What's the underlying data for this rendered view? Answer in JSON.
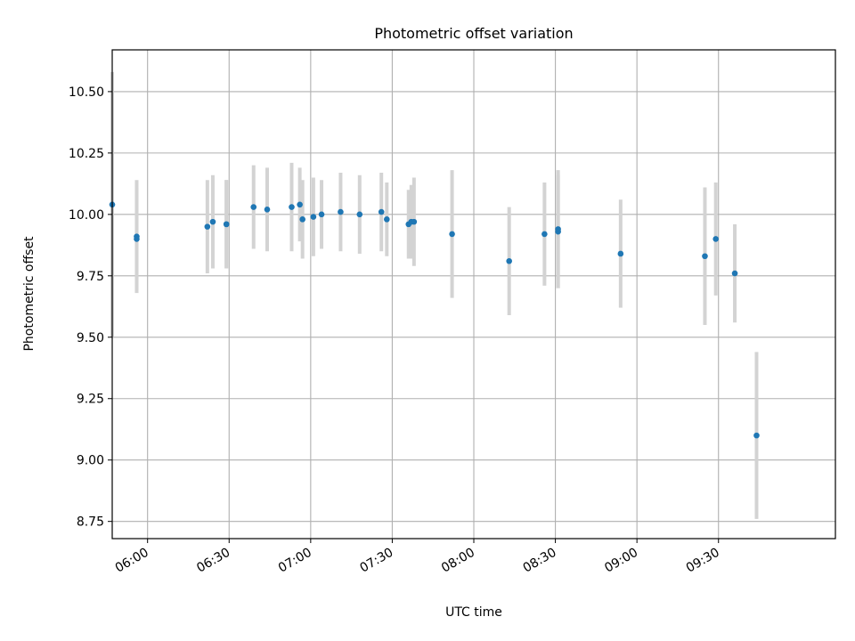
{
  "chart_data": {
    "type": "scatter",
    "title": "Photometric offset variation",
    "xlabel": "UTC time",
    "ylabel": "Photometric offset",
    "xlim": [
      "05:47",
      "10:13"
    ],
    "ylim": [
      8.68,
      10.67
    ],
    "x_ticks": [
      "06:00",
      "06:30",
      "07:00",
      "07:30",
      "08:00",
      "08:30",
      "09:00",
      "09:30"
    ],
    "y_ticks": [
      "8.75",
      "9.00",
      "9.25",
      "9.50",
      "9.75",
      "10.00",
      "10.25",
      "10.50"
    ],
    "grid": true,
    "marker_color": "#1f77b4",
    "errorbar_color": "#d3d3d3",
    "points": [
      {
        "t": "05:47",
        "y": 10.04,
        "yerr": 0.54
      },
      {
        "t": "05:56",
        "y": 9.91,
        "yerr": 0.23
      },
      {
        "t": "05:56",
        "y": 9.9,
        "yerr": 0.21
      },
      {
        "t": "06:22",
        "y": 9.95,
        "yerr": 0.19
      },
      {
        "t": "06:24",
        "y": 9.97,
        "yerr": 0.19
      },
      {
        "t": "06:29",
        "y": 9.96,
        "yerr": 0.18
      },
      {
        "t": "06:29",
        "y": 9.96,
        "yerr": 0.18
      },
      {
        "t": "06:39",
        "y": 10.03,
        "yerr": 0.17
      },
      {
        "t": "06:44",
        "y": 10.02,
        "yerr": 0.17
      },
      {
        "t": "06:53",
        "y": 10.03,
        "yerr": 0.18
      },
      {
        "t": "06:56",
        "y": 10.04,
        "yerr": 0.15
      },
      {
        "t": "06:57",
        "y": 9.98,
        "yerr": 0.16
      },
      {
        "t": "07:01",
        "y": 9.99,
        "yerr": 0.16
      },
      {
        "t": "07:04",
        "y": 10.0,
        "yerr": 0.14
      },
      {
        "t": "07:11",
        "y": 10.01,
        "yerr": 0.16
      },
      {
        "t": "07:18",
        "y": 10.0,
        "yerr": 0.16
      },
      {
        "t": "07:26",
        "y": 10.01,
        "yerr": 0.16
      },
      {
        "t": "07:28",
        "y": 9.98,
        "yerr": 0.15
      },
      {
        "t": "07:36",
        "y": 9.96,
        "yerr": 0.14
      },
      {
        "t": "07:37",
        "y": 9.97,
        "yerr": 0.15
      },
      {
        "t": "07:38",
        "y": 9.97,
        "yerr": 0.18
      },
      {
        "t": "07:52",
        "y": 9.92,
        "yerr": 0.26
      },
      {
        "t": "08:13",
        "y": 9.81,
        "yerr": 0.22
      },
      {
        "t": "08:26",
        "y": 9.92,
        "yerr": 0.21
      },
      {
        "t": "08:31",
        "y": 9.93,
        "yerr": 0.23
      },
      {
        "t": "08:31",
        "y": 9.94,
        "yerr": 0.24
      },
      {
        "t": "08:54",
        "y": 9.84,
        "yerr": 0.22
      },
      {
        "t": "09:25",
        "y": 9.83,
        "yerr": 0.28
      },
      {
        "t": "09:29",
        "y": 9.9,
        "yerr": 0.23
      },
      {
        "t": "09:36",
        "y": 9.76,
        "yerr": 0.2
      },
      {
        "t": "09:44",
        "y": 9.1,
        "yerr": 0.34
      }
    ]
  }
}
